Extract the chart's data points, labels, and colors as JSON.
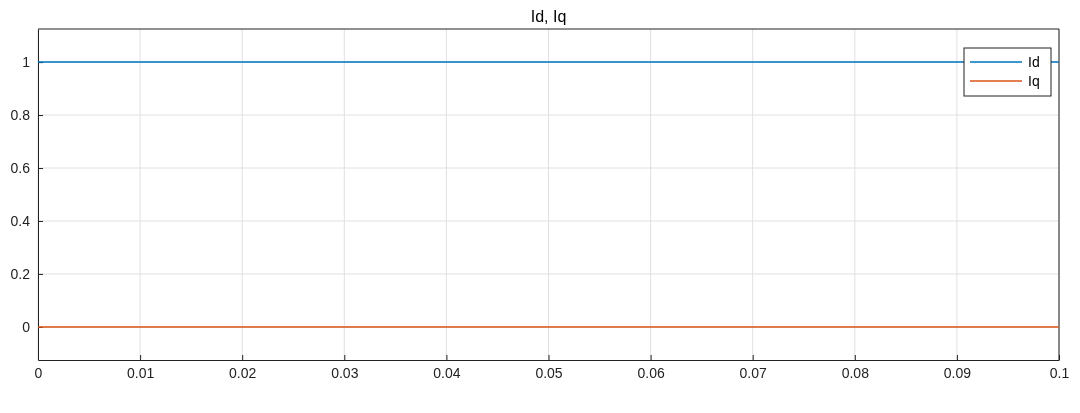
{
  "chart_data": {
    "type": "line",
    "title": "Id, Iq",
    "x": [
      0,
      0.1
    ],
    "series": [
      {
        "name": "Id",
        "color": "#0072bd",
        "values": [
          1,
          1
        ]
      },
      {
        "name": "Iq",
        "color": "#d95319",
        "values": [
          0,
          0
        ]
      }
    ],
    "xlim": [
      0,
      0.1
    ],
    "xticks": [
      0,
      0.01,
      0.02,
      0.03,
      0.04,
      0.05,
      0.06,
      0.07,
      0.08,
      0.09,
      0.1
    ],
    "ylim": [
      -0.125,
      1.125
    ],
    "yticks": [
      0,
      0.2,
      0.4,
      0.6,
      0.8,
      1
    ],
    "grid": true,
    "legend": "top right",
    "marker": "none",
    "line_style": "solid"
  }
}
